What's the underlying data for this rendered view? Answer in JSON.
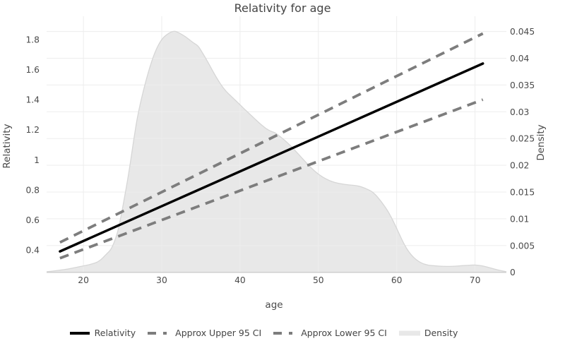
{
  "title": "Relativity for age",
  "colors": {
    "text": "#444444",
    "tick": "#4a4a4a",
    "gridline": "#ededed",
    "axis_line": "#cfcfcf",
    "relativity_line": "#000000",
    "ci_line": "#7d7d7d",
    "density_fill": "#e8e8e8",
    "density_edge": "#d6d6d6"
  },
  "chart_data": {
    "type": "line",
    "title": "Relativity for age",
    "xlabel": "age",
    "ylabel_left": "Relativity",
    "ylabel_right": "Density",
    "grid": true,
    "legend_position": "bottom",
    "x_range": [
      15.3,
      74
    ],
    "y_left_range": [
      0.251,
      1.955
    ],
    "y_right_range": [
      0,
      0.04785
    ],
    "x_ticks": [
      {
        "v": 20,
        "label": "20"
      },
      {
        "v": 30,
        "label": "30"
      },
      {
        "v": 40,
        "label": "40"
      },
      {
        "v": 50,
        "label": "50"
      },
      {
        "v": 60,
        "label": "60"
      },
      {
        "v": 70,
        "label": "70"
      }
    ],
    "y_left_ticks": [
      {
        "v": 0.4,
        "label": "0.4"
      },
      {
        "v": 0.6,
        "label": "0.6"
      },
      {
        "v": 0.8,
        "label": "0.8"
      },
      {
        "v": 1,
        "label": "1"
      },
      {
        "v": 1.2,
        "label": "1.2"
      },
      {
        "v": 1.4,
        "label": "1.4"
      },
      {
        "v": 1.6,
        "label": "1.6"
      },
      {
        "v": 1.8,
        "label": "1.8"
      }
    ],
    "y_right_ticks": [
      {
        "v": 0,
        "label": "0"
      },
      {
        "v": 0.005,
        "label": "0.005"
      },
      {
        "v": 0.01,
        "label": "0.01"
      },
      {
        "v": 0.015,
        "label": "0.015"
      },
      {
        "v": 0.02,
        "label": "0.02"
      },
      {
        "v": 0.025,
        "label": "0.025"
      },
      {
        "v": 0.03,
        "label": "0.03"
      },
      {
        "v": 0.035,
        "label": "0.035"
      },
      {
        "v": 0.04,
        "label": "0.04"
      },
      {
        "v": 0.045,
        "label": "0.045"
      }
    ],
    "series": [
      {
        "name": "Relativity",
        "kind": "line",
        "style": "solid",
        "axis": "left",
        "x": [
          17,
          71
        ],
        "y": [
          0.39,
          1.64
        ]
      },
      {
        "name": "Approx Upper 95 CI",
        "kind": "line",
        "style": "dashed",
        "axis": "left",
        "x": [
          17,
          71
        ],
        "y": [
          0.45,
          1.84
        ]
      },
      {
        "name": "Approx Lower 95 CI",
        "kind": "line",
        "style": "dashed",
        "axis": "left",
        "x": [
          17,
          71
        ],
        "y": [
          0.345,
          1.4
        ]
      },
      {
        "name": "Density",
        "kind": "area",
        "axis": "right",
        "points": [
          [
            15.3,
            0.0001
          ],
          [
            16,
            0.0002
          ],
          [
            17,
            0.0004
          ],
          [
            18,
            0.0006
          ],
          [
            19,
            0.0009
          ],
          [
            20,
            0.0012
          ],
          [
            21,
            0.0015
          ],
          [
            22,
            0.002
          ],
          [
            23,
            0.0035
          ],
          [
            23.5,
            0.0042
          ],
          [
            24,
            0.0058
          ],
          [
            24.5,
            0.0082
          ],
          [
            25,
            0.012
          ],
          [
            25.5,
            0.016
          ],
          [
            26,
            0.0205
          ],
          [
            26.5,
            0.0255
          ],
          [
            27,
            0.03
          ],
          [
            28,
            0.036
          ],
          [
            29,
            0.0408
          ],
          [
            30,
            0.0437
          ],
          [
            31,
            0.0448
          ],
          [
            31.6,
            0.0451
          ],
          [
            32,
            0.0449
          ],
          [
            33,
            0.0441
          ],
          [
            34,
            0.0429
          ],
          [
            34.6,
            0.0424
          ],
          [
            35,
            0.0415
          ],
          [
            36,
            0.039
          ],
          [
            37,
            0.0363
          ],
          [
            38,
            0.0341
          ],
          [
            39,
            0.0327
          ],
          [
            40,
            0.0313
          ],
          [
            41,
            0.0299
          ],
          [
            42,
            0.0285
          ],
          [
            43,
            0.0272
          ],
          [
            43.8,
            0.0264
          ],
          [
            44.5,
            0.0261
          ],
          [
            45,
            0.0255
          ],
          [
            46,
            0.0243
          ],
          [
            47,
            0.0228
          ],
          [
            48,
            0.0212
          ],
          [
            49,
            0.0196
          ],
          [
            50,
            0.0183
          ],
          [
            51,
            0.0174
          ],
          [
            52,
            0.0168
          ],
          [
            53,
            0.0165
          ],
          [
            54,
            0.0163
          ],
          [
            55,
            0.0162
          ],
          [
            56,
            0.0157
          ],
          [
            57,
            0.015
          ],
          [
            58,
            0.0133
          ],
          [
            59,
            0.0112
          ],
          [
            60,
            0.0082
          ],
          [
            61,
            0.005
          ],
          [
            62,
            0.0029
          ],
          [
            63,
            0.0018
          ],
          [
            64,
            0.0013
          ],
          [
            65,
            0.0012
          ],
          [
            66,
            0.0011
          ],
          [
            67,
            0.0011
          ],
          [
            68,
            0.0012
          ],
          [
            69,
            0.0013
          ],
          [
            70,
            0.0014
          ],
          [
            71,
            0.0012
          ],
          [
            72,
            0.0008
          ],
          [
            73,
            0.0004
          ],
          [
            74,
            0.0001
          ]
        ]
      }
    ]
  },
  "legend": {
    "items": [
      {
        "label": "Relativity",
        "swatch": "solid-line"
      },
      {
        "label": "Approx Upper 95 CI",
        "swatch": "dashed-line"
      },
      {
        "label": "Approx Lower 95 CI",
        "swatch": "dashed-line"
      },
      {
        "label": "Density",
        "swatch": "area"
      }
    ]
  }
}
